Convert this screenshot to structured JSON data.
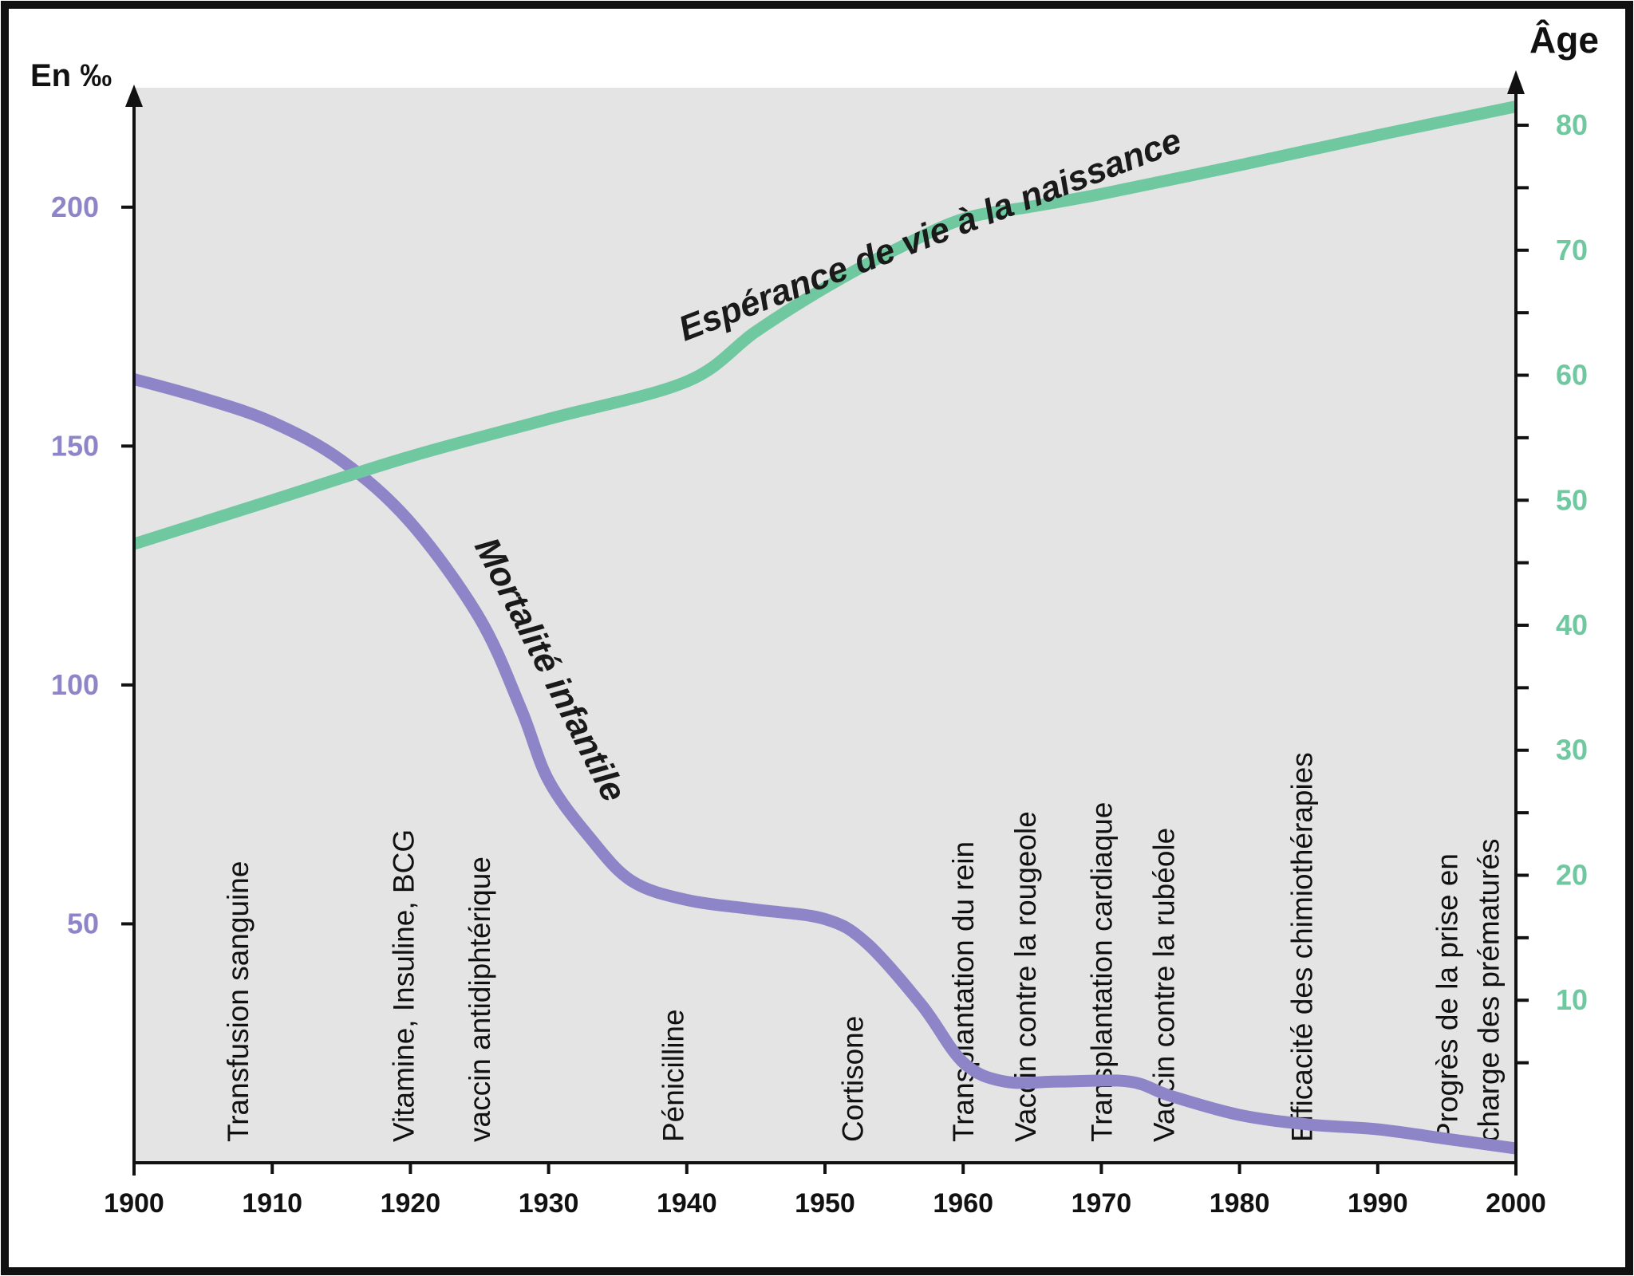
{
  "chart_data": {
    "type": "line",
    "left_axis_label": "En ‰",
    "right_axis_label": "Âge",
    "x_ticks": [
      1900,
      1910,
      1920,
      1930,
      1940,
      1950,
      1960,
      1970,
      1980,
      1990,
      2000
    ],
    "x_range": [
      1900,
      2000
    ],
    "y_left_range": [
      0,
      225
    ],
    "y_left_ticks": [
      50,
      100,
      150,
      200
    ],
    "y_right_range": [
      -3,
      83
    ],
    "y_right_ticks": [
      10,
      20,
      30,
      40,
      50,
      60,
      70,
      80
    ],
    "y_right_minor_step": 5,
    "grid": false,
    "series": [
      {
        "name": "Mortalité infantile",
        "axis": "left",
        "color": "#8E85C8",
        "x": [
          1900,
          1905,
          1910,
          1915,
          1920,
          1925,
          1928,
          1930,
          1933,
          1936,
          1940,
          1945,
          1950,
          1953,
          1957,
          1960,
          1963,
          1967,
          1972,
          1975,
          1980,
          1985,
          1990,
          1995,
          2000
        ],
        "values": [
          164,
          160,
          155,
          147,
          134,
          114,
          95,
          80,
          68,
          59,
          55,
          53,
          51,
          46,
          33,
          21,
          17,
          17,
          17,
          14,
          10,
          8,
          7,
          5,
          3
        ]
      },
      {
        "name": "Espérance de vie à la naissance",
        "axis": "right",
        "color": "#6FC8A0",
        "x": [
          1900,
          1910,
          1920,
          1930,
          1940,
          1945,
          1950,
          1955,
          1960,
          1965,
          1970,
          1980,
          1990,
          2000
        ],
        "values": [
          46.5,
          50,
          53.5,
          56.5,
          59.5,
          63.5,
          67,
          70,
          72.5,
          73.5,
          74.5,
          76.8,
          79.2,
          81.5
        ]
      }
    ],
    "events": [
      {
        "label": "Transfusion sanguine",
        "x": 1907.5
      },
      {
        "label": "Vitamine, Insuline, BCG",
        "x": 1919.5
      },
      {
        "label": "vaccin antidiphtérique",
        "x": 1925
      },
      {
        "label": "Pénicilline",
        "x": 1939
      },
      {
        "label": "Cortisone",
        "x": 1952
      },
      {
        "label": "Transplantation du rein",
        "x": 1960
      },
      {
        "label": "Vaccin contre la rougeole",
        "x": 1964.5
      },
      {
        "label": "Transplantation cardiaque",
        "x": 1970
      },
      {
        "label": "Vaccin contre la rubéole",
        "x": 1974.5
      },
      {
        "label": "Efficacité des chimiothérapies",
        "x": 1984.5
      },
      {
        "label": "Progrès de la prise en",
        "x": 1995
      },
      {
        "label": "charge des prématurés",
        "x": 1998
      }
    ]
  },
  "colors": {
    "plot_background": "#E4E4E4",
    "left_axis_ticks": "#8E85C8",
    "right_axis_ticks": "#6FC8A0",
    "axis": "#111111",
    "frame": "#111111"
  }
}
